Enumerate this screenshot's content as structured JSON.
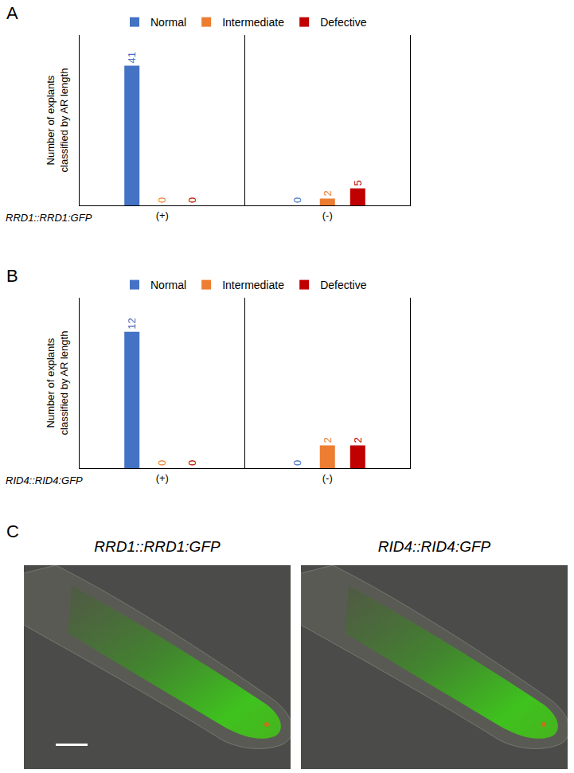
{
  "panel_labels": [
    "A",
    "B",
    "C"
  ],
  "chart_data": [
    {
      "type": "bar",
      "legend": "top",
      "grid": false,
      "data_labels": true,
      "tick_labels": "x",
      "xlabel": "RRD1::RRD1:GFP",
      "ylabel": [
        "Number of explants",
        "classified by AR length"
      ],
      "categories": [
        "(+)",
        "(-)"
      ],
      "ylim": [
        0,
        50
      ],
      "series": [
        {
          "name": "Normal",
          "color": "#4472c4",
          "values": [
            41,
            0
          ]
        },
        {
          "name": "Intermediate",
          "color": "#ed7d31",
          "values": [
            0,
            2
          ]
        },
        {
          "name": "Defective",
          "color": "#c00000",
          "values": [
            0,
            5
          ]
        }
      ]
    },
    {
      "type": "bar",
      "legend": "top",
      "grid": false,
      "data_labels": true,
      "tick_labels": "x",
      "xlabel": "RID4::RID4:GFP",
      "ylabel": [
        "Number of explants",
        "classified by AR length"
      ],
      "categories": [
        "(+)",
        "(-)"
      ],
      "ylim": [
        0,
        15
      ],
      "series": [
        {
          "name": "Normal",
          "color": "#4472c4",
          "values": [
            12,
            0
          ]
        },
        {
          "name": "Intermediate",
          "color": "#ed7d31",
          "values": [
            0,
            2
          ]
        },
        {
          "name": "Defective",
          "color": "#c00000",
          "values": [
            0,
            2
          ]
        }
      ]
    }
  ],
  "images": [
    {
      "title": "RRD1::RRD1:GFP"
    },
    {
      "title": "RID4::RID4:GFP"
    }
  ]
}
